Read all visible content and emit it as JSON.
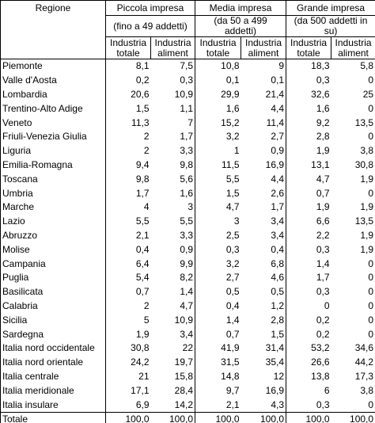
{
  "header": {
    "region": "Regione",
    "groups": [
      {
        "title": "Piccola impresa",
        "subtitle": "(fino a 49 addetti)",
        "columns": [
          "Industria totale",
          "Industria aliment"
        ]
      },
      {
        "title": "Media impresa",
        "subtitle": "(da 50 a 499 addetti)",
        "columns": [
          "Industria totale",
          "Industria aliment"
        ]
      },
      {
        "title": "Grande impresa",
        "subtitle": "(da 500 addetti in su)",
        "columns": [
          "Industria totale",
          "Industria aliment"
        ]
      }
    ]
  },
  "rows": [
    [
      "Piemonte",
      "8,1",
      "7,5",
      "10,8",
      "9",
      "18,3",
      "5,8"
    ],
    [
      "Valle d'Aosta",
      "0,2",
      "0,3",
      "0,1",
      "0,1",
      "0,3",
      "0"
    ],
    [
      "Lombardia",
      "20,6",
      "10,9",
      "29,9",
      "21,4",
      "32,6",
      "25"
    ],
    [
      "Trentino-Alto Adige",
      "1,5",
      "1,1",
      "1,6",
      "4,4",
      "1,6",
      "0"
    ],
    [
      "Veneto",
      "11,3",
      "7",
      "15,2",
      "11,4",
      "9,2",
      "13,5"
    ],
    [
      "Friuli-Venezia Giulia",
      "2",
      "1,7",
      "3,2",
      "2,7",
      "2,8",
      "0"
    ],
    [
      "Liguria",
      "2",
      "3,3",
      "1",
      "0,9",
      "1,9",
      "3,8"
    ],
    [
      "Emilia-Romagna",
      "9,4",
      "9,8",
      "11,5",
      "16,9",
      "13,1",
      "30,8"
    ],
    [
      "Toscana",
      "9,8",
      "5,6",
      "5,5",
      "4,4",
      "4,7",
      "1,9"
    ],
    [
      "Umbria",
      "1,7",
      "1,6",
      "1,5",
      "2,6",
      "0,7",
      "0"
    ],
    [
      "Marche",
      "4",
      "3",
      "4,7",
      "1,7",
      "1,9",
      "1,9"
    ],
    [
      "Lazio",
      "5,5",
      "5,5",
      "3",
      "3,4",
      "6,6",
      "13,5"
    ],
    [
      "Abruzzo",
      "2,1",
      "3,3",
      "2,5",
      "3,4",
      "2,2",
      "1,9"
    ],
    [
      "Molise",
      "0,4",
      "0,9",
      "0,3",
      "0,4",
      "0,3",
      "1,9"
    ],
    [
      "Campania",
      "6,4",
      "9,9",
      "3,2",
      "6,8",
      "1,4",
      "0"
    ],
    [
      "Puglia",
      "5,4",
      "8,2",
      "2,7",
      "4,6",
      "1,7",
      "0"
    ],
    [
      "Basilicata",
      "0,7",
      "1,4",
      "0,5",
      "0,5",
      "0,3",
      "0"
    ],
    [
      "Calabria",
      "2",
      "4,7",
      "0,4",
      "1,2",
      "0",
      "0"
    ],
    [
      "Sicilia",
      "5",
      "10,9",
      "1,4",
      "2,8",
      "0,2",
      "0"
    ],
    [
      "Sardegna",
      "1,9",
      "3,4",
      "0,7",
      "1,5",
      "0,2",
      "0"
    ],
    [
      "Italia nord occidentale",
      "30,8",
      "22",
      "41,9",
      "31,4",
      "53,2",
      "34,6"
    ],
    [
      "Italia nord orientale",
      "24,2",
      "19,7",
      "31,5",
      "35,4",
      "26,6",
      "44,2"
    ],
    [
      "Italia centrale",
      "21",
      "15,8",
      "14,8",
      "12",
      "13,8",
      "17,3"
    ],
    [
      "Italia meridionale",
      "17,1",
      "28,4",
      "9,7",
      "16,9",
      "6",
      "3,8"
    ],
    [
      "Italia insulare",
      "6,9",
      "14,2",
      "2,1",
      "4,3",
      "0,3",
      "0"
    ],
    [
      "Totale",
      "100,0",
      "100,0",
      "100,0",
      "100,0",
      "100,0",
      "100,0"
    ]
  ]
}
